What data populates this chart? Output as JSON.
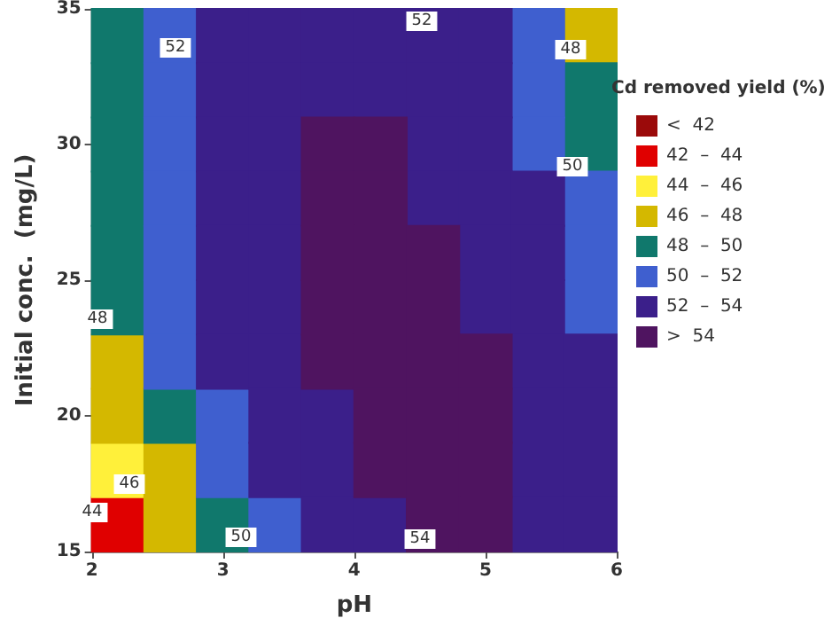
{
  "chart_data": {
    "type": "scatter",
    "xlabel": "pH",
    "ylabel": "Initial conc.  (mg/L)",
    "legend_title": "Cd removed yield (%)",
    "legend": "right",
    "marker": "square",
    "xlim": [
      2,
      6
    ],
    "xticks": [
      2,
      3,
      4,
      5,
      6
    ],
    "ylim": [
      15,
      35
    ],
    "yticks": [
      15,
      20,
      25,
      30,
      35
    ],
    "series": [
      {
        "name": "<  42",
        "color": "#9b0a0a"
      },
      {
        "name": "42  –  44",
        "color": "#e00000",
        "x": [
          2.2
        ],
        "values": [
          16
        ]
      },
      {
        "name": "44  –  46",
        "color": "#fff03a",
        "x": [
          2.2
        ],
        "values": [
          18
        ]
      },
      {
        "name": "46  –  48",
        "color": "#d4b800",
        "x": [
          5.8,
          2.2,
          2.2,
          2.6,
          2.6
        ],
        "values": [
          34,
          22,
          20,
          18,
          16
        ]
      },
      {
        "name": "48  –  50",
        "color": "#10786c",
        "x": [
          2.2,
          2.2,
          5.8,
          2.2,
          5.8,
          2.2,
          2.2,
          2.2,
          2.6,
          3.0
        ],
        "values": [
          34,
          32,
          32,
          30,
          30,
          28,
          26,
          24,
          20,
          16
        ]
      },
      {
        "name": "50  –  52",
        "color": "#3f5fcf",
        "x": [
          2.6,
          5.4,
          2.6,
          5.4,
          2.6,
          5.4,
          2.6,
          5.8,
          2.6,
          5.8,
          2.6,
          5.8,
          2.6,
          3.0,
          3.0,
          3.4
        ],
        "values": [
          34,
          34,
          32,
          32,
          30,
          30,
          28,
          28,
          26,
          26,
          24,
          24,
          22,
          20,
          18,
          16
        ]
      },
      {
        "name": "52  –  54",
        "color": "#3b1f8a",
        "x": [
          3.0,
          3.4,
          3.8,
          4.2,
          4.6,
          5.0,
          3.0,
          3.4,
          3.8,
          4.2,
          4.6,
          5.0,
          3.0,
          3.4,
          4.6,
          5.0,
          3.0,
          3.4,
          4.6,
          5.0,
          5.4,
          3.0,
          3.4,
          5.0,
          5.4,
          3.0,
          3.4,
          5.0,
          5.4,
          3.0,
          3.4,
          5.4,
          5.8,
          3.4,
          3.8,
          5.4,
          5.8,
          3.4,
          3.8,
          5.4,
          5.8,
          3.8,
          4.2,
          5.4,
          5.8
        ],
        "values": [
          34,
          34,
          34,
          34,
          34,
          34,
          32,
          32,
          32,
          32,
          32,
          32,
          30,
          30,
          30,
          30,
          28,
          28,
          28,
          28,
          28,
          26,
          26,
          26,
          26,
          24,
          24,
          24,
          24,
          22,
          22,
          22,
          22,
          20,
          20,
          20,
          20,
          18,
          18,
          18,
          18,
          16,
          16,
          16,
          16
        ]
      },
      {
        "name": ">  54",
        "color": "#4f1460",
        "x": [
          3.8,
          4.2,
          3.8,
          4.2,
          3.8,
          4.2,
          4.6,
          3.8,
          4.2,
          4.6,
          3.8,
          4.2,
          4.6,
          5.0,
          4.2,
          4.6,
          5.0,
          4.2,
          4.6,
          5.0,
          4.6,
          5.0
        ],
        "values": [
          30,
          30,
          28,
          28,
          26,
          26,
          26,
          24,
          24,
          24,
          22,
          22,
          22,
          22,
          20,
          20,
          20,
          18,
          18,
          18,
          16,
          16
        ]
      }
    ],
    "annotations": [
      "52",
      "52",
      "48",
      "50",
      "48",
      "46",
      "44",
      "50",
      "54"
    ]
  }
}
